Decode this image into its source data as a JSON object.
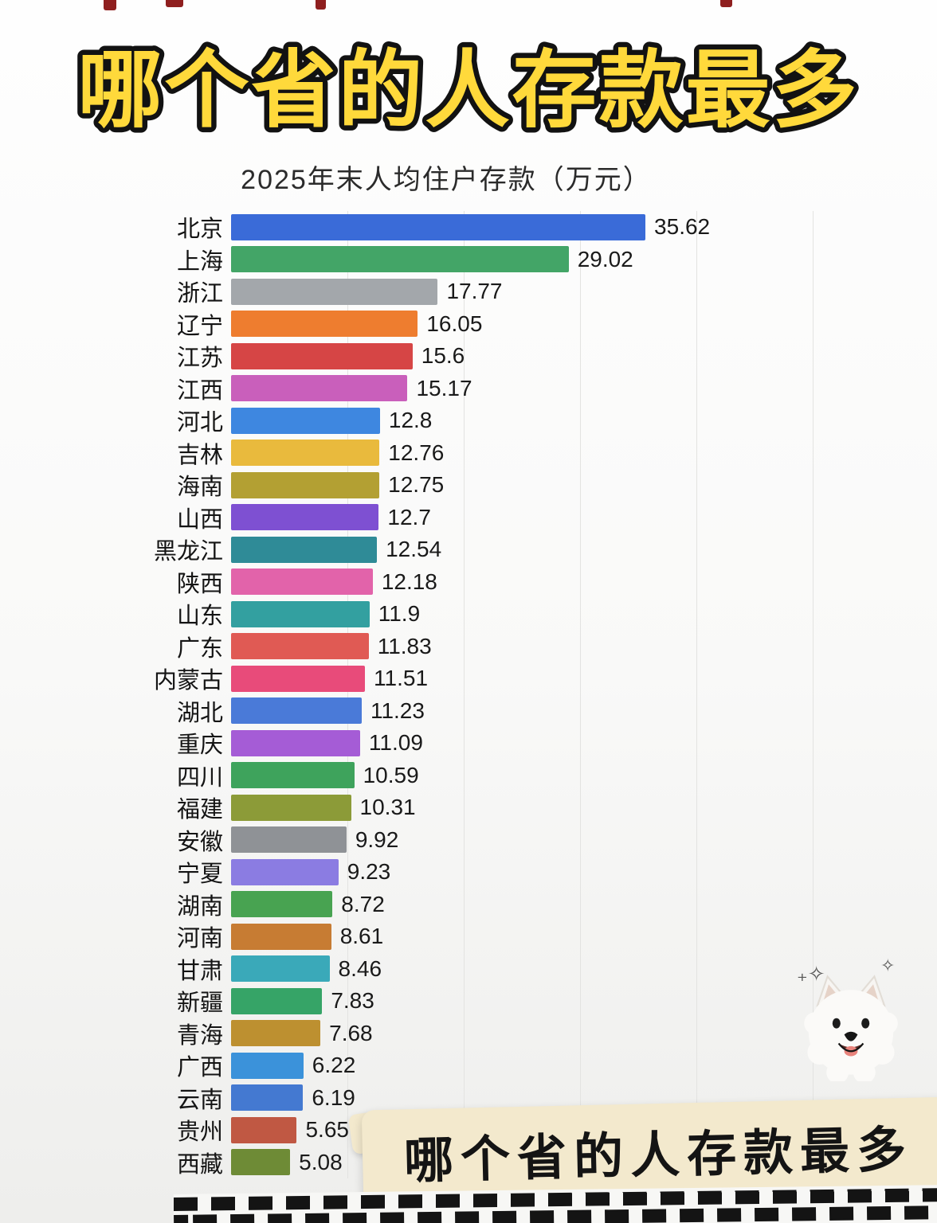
{
  "header": {
    "title": "哪个省的人存款最多"
  },
  "chart_data": {
    "type": "bar",
    "orientation": "horizontal",
    "title": "2025年末人均住户存款（万元）",
    "unit": "万元",
    "xlim": [
      0,
      55
    ],
    "gridlines_x": [
      10,
      20,
      30,
      40,
      50
    ],
    "grid": true,
    "legend": "none",
    "categories": [
      "北京",
      "上海",
      "浙江",
      "辽宁",
      "江苏",
      "江西",
      "河北",
      "吉林",
      "海南",
      "山西",
      "黑龙江",
      "陕西",
      "山东",
      "广东",
      "内蒙古",
      "湖北",
      "重庆",
      "四川",
      "福建",
      "安徽",
      "宁夏",
      "湖南",
      "河南",
      "甘肃",
      "新疆",
      "青海",
      "广西",
      "云南",
      "贵州",
      "西藏"
    ],
    "values": [
      35.62,
      29.02,
      17.77,
      16.05,
      15.6,
      15.17,
      12.8,
      12.76,
      12.75,
      12.7,
      12.54,
      12.18,
      11.9,
      11.83,
      11.51,
      11.23,
      11.09,
      10.59,
      10.31,
      9.92,
      9.23,
      8.72,
      8.61,
      8.46,
      7.83,
      7.68,
      6.22,
      6.19,
      5.65,
      5.08
    ],
    "value_labels": [
      "35.62",
      "29.02",
      "17.77",
      "16.05",
      "15.6",
      "15.17",
      "12.8",
      "12.76",
      "12.75",
      "12.7",
      "12.54",
      "12.18",
      "11.9",
      "11.83",
      "11.51",
      "11.23",
      "11.09",
      "10.59",
      "10.31",
      "9.92",
      "9.23",
      "8.72",
      "8.61",
      "8.46",
      "7.83",
      "7.68",
      "6.22",
      "6.19",
      "5.65",
      "5.08"
    ],
    "bar_colors": [
      "#3a6bd8",
      "#43a567",
      "#a3a7ab",
      "#ee7d2f",
      "#d64545",
      "#c95fbb",
      "#3e87e0",
      "#e9ba3d",
      "#b3a033",
      "#7e50d2",
      "#2f8b97",
      "#e263aa",
      "#33a0a0",
      "#e05a54",
      "#e84b7a",
      "#4a7ad8",
      "#a55cd6",
      "#3ea35c",
      "#8c9b38",
      "#8f9296",
      "#8b7ce2",
      "#48a351",
      "#c77c33",
      "#3aa9b9",
      "#36a467",
      "#bd9030",
      "#3b92da",
      "#4479d1",
      "#c05843",
      "#6e8b36"
    ]
  },
  "banner": {
    "text": "哪个省的人存款最多"
  },
  "decor": {
    "dog_icon": "samoyed-dog",
    "sparkle_left": "₊✧",
    "sparkle_right": "✧"
  }
}
